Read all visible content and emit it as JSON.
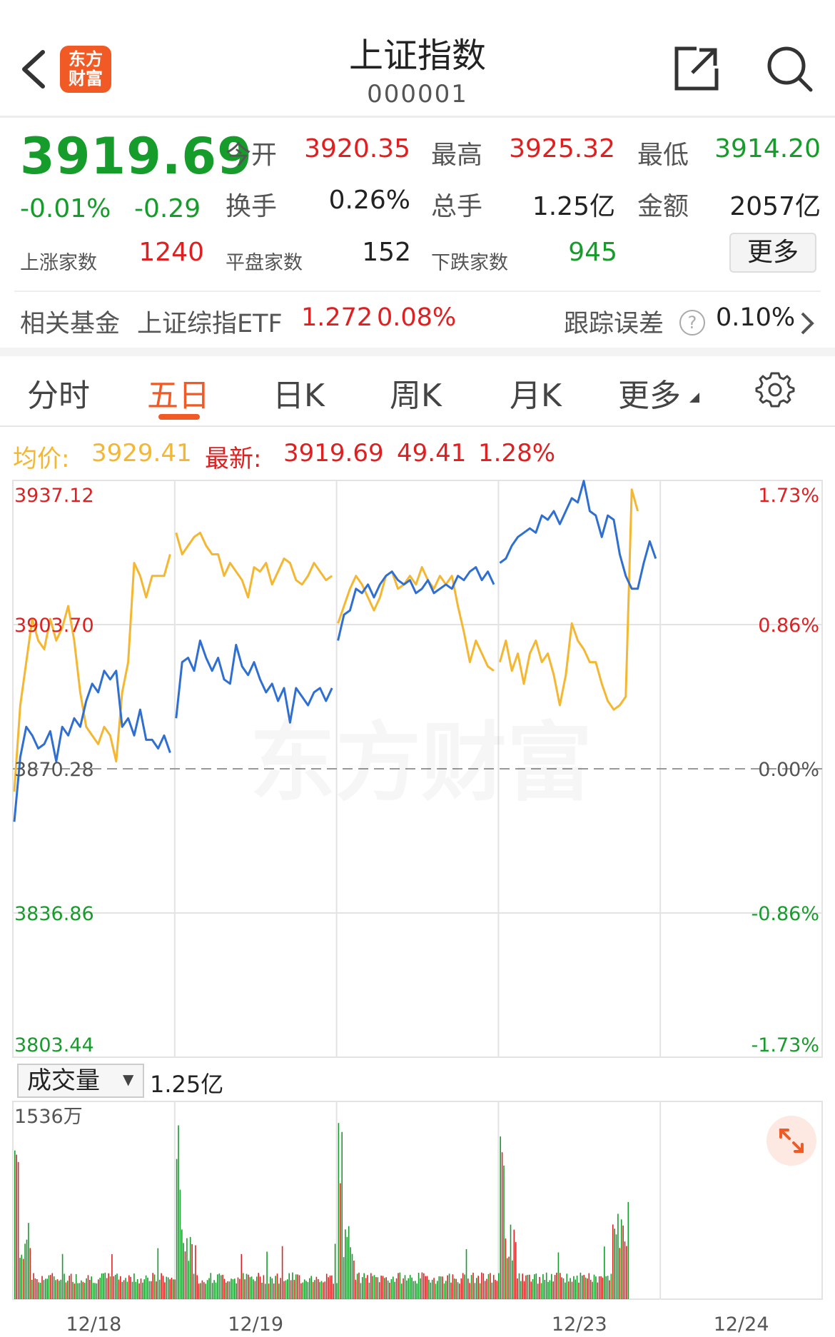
{
  "header": {
    "logo_text": "东方财富",
    "title": "上证指数",
    "code": "000001"
  },
  "quote": {
    "price": "3919.69",
    "change_pct": "-0.01%",
    "change_val": "-0.29",
    "open_label": "今开",
    "open": "3920.35",
    "high_label": "最高",
    "high": "3925.32",
    "low_label": "最低",
    "low": "3914.20",
    "turnover_label": "换手",
    "turnover": "0.26%",
    "volume_label": "总手",
    "volume": "1.25亿",
    "amount_label": "金额",
    "amount": "2057亿",
    "up_label": "上涨家数",
    "up": "1240",
    "flat_label": "平盘家数",
    "flat": "152",
    "down_label": "下跌家数",
    "down": "945",
    "more_label": "更多"
  },
  "fund": {
    "label": "相关基金",
    "name": "上证综指ETF",
    "price": "1.272",
    "pct": "0.08%",
    "tracking_label": "跟踪误差",
    "tracking": "0.10%"
  },
  "tabs": [
    "分时",
    "五日",
    "日K",
    "周K",
    "月K",
    "更多"
  ],
  "active_tab": 1,
  "info": {
    "avg_label": "均价:",
    "avg": "3929.41",
    "latest_label": "最新:",
    "latest": "3919.69",
    "change": "49.41",
    "pct": "1.28%"
  },
  "volume_panel": {
    "selector": "成交量",
    "total": "1.25亿",
    "max_label": "1536万"
  },
  "colors": {
    "up": "#e02020",
    "down": "#169c2b",
    "brand": "#f15a24",
    "price_line": "#2f6fd1",
    "avg_line": "#f5b731"
  },
  "chart_data": {
    "type": "line",
    "x_labels": [
      "12/18",
      "12/19",
      "12/23",
      "12/24"
    ],
    "y_left_ticks": [
      "3937.12",
      "3903.70",
      "3870.28",
      "3836.86",
      "3803.44"
    ],
    "y_right_ticks": [
      "1.73%",
      "0.86%",
      "0.00%",
      "-0.86%",
      "-1.73%"
    ],
    "ylim": [
      3803.44,
      3937.12
    ],
    "baseline": 3870.28,
    "days": 5,
    "watermark": "东方财富",
    "series": [
      {
        "values": [
          [
            3858,
            3873,
            3880,
            3878,
            3875,
            3876,
            3879,
            3872,
            3880,
            3878,
            3882,
            3880,
            3886,
            3890,
            3888,
            3893,
            3891,
            3893,
            3880,
            3882,
            3878,
            3884,
            3877,
            3877,
            3875,
            3878,
            3874
          ],
          [
            3882,
            3895,
            3896,
            3893,
            3900,
            3896,
            3893,
            3896,
            3891,
            3890,
            3899,
            3894,
            3892,
            3895,
            3891,
            3888,
            3890,
            3886,
            3889,
            3881,
            3889,
            3887,
            3885,
            3888,
            3889,
            3886,
            3889
          ],
          [
            3900,
            3906,
            3907,
            3912,
            3911,
            3913,
            3910,
            3913,
            3915,
            3916,
            3914,
            3913,
            3914,
            3911,
            3912,
            3914,
            3911,
            3912,
            3913,
            3912,
            3915,
            3914,
            3916,
            3917,
            3914,
            3916,
            3913
          ],
          [
            3918,
            3919,
            3922,
            3924,
            3925,
            3926,
            3925,
            3929,
            3928,
            3930,
            3927,
            3930,
            3933,
            3932,
            3937,
            3930,
            3929,
            3924,
            3929,
            3928,
            3920,
            3915,
            3912,
            3912,
            3918,
            3923,
            3919
          ]
        ]
      },
      {
        "values": [
          [
            3865,
            3885,
            3895,
            3905,
            3900,
            3898,
            3905,
            3900,
            3903,
            3908,
            3900,
            3888,
            3880,
            3878,
            3876,
            3880,
            3878,
            3872,
            3888,
            3895,
            3918,
            3915,
            3910,
            3915,
            3915,
            3915,
            3920
          ],
          [
            3925,
            3920,
            3922,
            3924,
            3925,
            3922,
            3920,
            3920,
            3915,
            3918,
            3916,
            3914,
            3910,
            3917,
            3916,
            3918,
            3913,
            3916,
            3919,
            3918,
            3914,
            3913,
            3915,
            3918,
            3916,
            3914,
            3915
          ],
          [
            3904,
            3908,
            3912,
            3915,
            3913,
            3910,
            3907,
            3910,
            3915,
            3916,
            3912,
            3913,
            3915,
            3913,
            3917,
            3914,
            3912,
            3915,
            3913,
            3915,
            3908,
            3902,
            3895,
            3900,
            3897,
            3894,
            3893
          ],
          [
            3895,
            3900,
            3893,
            3897,
            3890,
            3897,
            3900,
            3895,
            3897,
            3892,
            3885,
            3892,
            3904,
            3900,
            3898,
            3895,
            3895,
            3890,
            3886,
            3884,
            3885,
            3887,
            3935,
            3930
          ]
        ]
      }
    ]
  }
}
